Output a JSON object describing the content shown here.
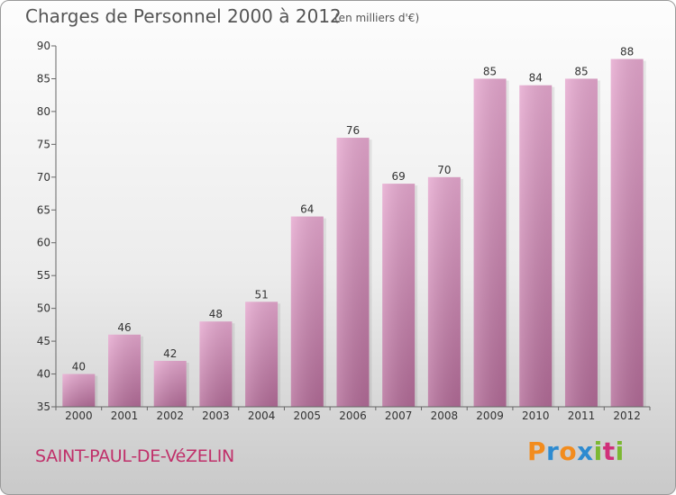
{
  "header": {
    "title": "Charges de Personnel 2000 à 2012",
    "subtitle": "(en milliers d'€)"
  },
  "footer": {
    "commune": "SAINT-PAUL-DE-VéZELIN",
    "logo_text": "Proxiti",
    "logo_letters": [
      {
        "ch": "P",
        "color": "#f28c1e"
      },
      {
        "ch": "r",
        "color": "#2e8bd0"
      },
      {
        "ch": "o",
        "color": "#f28c1e"
      },
      {
        "ch": "x",
        "color": "#2e8bd0"
      },
      {
        "ch": "i",
        "color": "#7cb832"
      },
      {
        "ch": "t",
        "color": "#d0307a"
      },
      {
        "ch": "i",
        "color": "#7cb832"
      }
    ]
  },
  "chart_data": {
    "type": "bar",
    "categories": [
      "2000",
      "2001",
      "2002",
      "2003",
      "2004",
      "2005",
      "2006",
      "2007",
      "2008",
      "2009",
      "2010",
      "2011",
      "2012"
    ],
    "values": [
      40,
      46,
      42,
      48,
      51,
      64,
      76,
      69,
      70,
      85,
      84,
      85,
      88
    ],
    "ylim": [
      35,
      90
    ],
    "yticks": [
      35,
      40,
      45,
      50,
      55,
      60,
      65,
      70,
      75,
      80,
      85,
      90
    ],
    "bar_color_top": "#e6a8cf",
    "bar_color_bottom": "#b36c98",
    "grid": false,
    "legend": "none"
  }
}
